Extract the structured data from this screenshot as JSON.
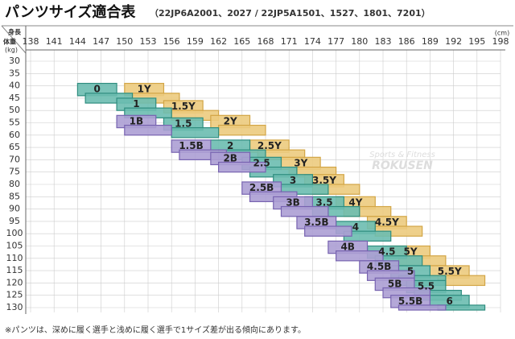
{
  "header": {
    "title": "パンツサイズ適合表",
    "subtitle": "（22JP6A2001、2027 / 22JP5A1501、1527、1801、7201）"
  },
  "axes": {
    "height_label": "身長",
    "height_unit": "(cm)",
    "weight_label": "体重",
    "weight_unit": "(kg)",
    "heights": [
      138,
      141,
      144,
      147,
      150,
      153,
      156,
      159,
      162,
      165,
      168,
      171,
      174,
      177,
      180,
      183,
      186,
      189,
      192,
      195,
      198
    ],
    "weights": [
      30,
      35,
      40,
      45,
      50,
      55,
      60,
      65,
      70,
      75,
      80,
      85,
      90,
      95,
      100,
      105,
      110,
      115,
      120,
      125,
      130
    ]
  },
  "groups": [
    {
      "color": "#eccb7e",
      "stroke": "#d2a546",
      "regions": [
        {
          "label": "1Y",
          "boxes": [
            [
              150,
              155,
              39,
              44
            ],
            [
              151,
              157,
              43,
              47
            ]
          ]
        },
        {
          "label": "1.5Y",
          "boxes": [
            [
              155,
              160,
              46,
              51
            ],
            [
              156,
              162,
              50,
              54
            ]
          ]
        },
        {
          "label": "2Y",
          "boxes": [
            [
              161,
              166,
              52,
              57
            ],
            [
              162,
              168,
              56,
              60
            ]
          ]
        },
        {
          "label": "2.5Y",
          "boxes": [
            [
              166,
              171,
              62,
              67
            ],
            [
              167,
              173,
              66,
              70
            ]
          ]
        },
        {
          "label": "3Y",
          "boxes": [
            [
              170,
              175,
              69,
              74
            ],
            [
              171,
              177,
              73,
              77
            ]
          ]
        },
        {
          "label": "3.5Y",
          "boxes": [
            [
              173,
              178,
              76,
              81
            ],
            [
              174,
              180,
              80,
              84
            ]
          ]
        },
        {
          "label": "4Y",
          "boxes": [
            [
              177,
              182,
              85,
              90
            ],
            [
              178,
              184,
              89,
              93
            ]
          ]
        },
        {
          "label": "4.5Y",
          "boxes": [
            [
              181,
              186,
              93,
              98
            ],
            [
              182,
              188,
              97,
              101
            ]
          ]
        },
        {
          "label": "5Y",
          "boxes": [
            [
              184,
              189,
              105,
              110
            ],
            [
              185,
              191,
              109,
              113
            ]
          ]
        },
        {
          "label": "5.5Y",
          "boxes": [
            [
              189,
              194,
              113,
              118
            ],
            [
              190,
              196,
              117,
              121
            ]
          ]
        }
      ]
    },
    {
      "color": "#6cbdb0",
      "stroke": "#2f8d7f",
      "regions": [
        {
          "label": "0",
          "boxes": [
            [
              144,
              149,
              39,
              44
            ],
            [
              145,
              151,
              43,
              47
            ]
          ]
        },
        {
          "label": "1",
          "boxes": [
            [
              149,
              154,
              45,
              50
            ],
            [
              150,
              156,
              49,
              53
            ]
          ]
        },
        {
          "label": "1.5",
          "boxes": [
            [
              155,
              160,
              53,
              58
            ],
            [
              156,
              162,
              57,
              61
            ]
          ]
        },
        {
          "label": "2",
          "boxes": [
            [
              161,
              166,
              62,
              67
            ],
            [
              162,
              168,
              66,
              70
            ]
          ]
        },
        {
          "label": "2.5",
          "boxes": [
            [
              165,
              170,
              69,
              74
            ],
            [
              166,
              172,
              73,
              77
            ]
          ]
        },
        {
          "label": "3",
          "boxes": [
            [
              169,
              174,
              76,
              81
            ],
            [
              170,
              176,
              80,
              84
            ]
          ]
        },
        {
          "label": "3.5",
          "boxes": [
            [
              173,
              178,
              85,
              90
            ],
            [
              174,
              180,
              89,
              93
            ]
          ]
        },
        {
          "label": "4",
          "boxes": [
            [
              177,
              182,
              95,
              100
            ],
            [
              178,
              184,
              99,
              103
            ]
          ]
        },
        {
          "label": "4.5",
          "boxes": [
            [
              181,
              186,
              105,
              110
            ],
            [
              182,
              188,
              109,
              113
            ]
          ]
        },
        {
          "label": "5",
          "boxes": [
            [
              184,
              189,
              113,
              118
            ],
            [
              185,
              191,
              117,
              121
            ]
          ]
        },
        {
          "label": "5.5",
          "boxes": [
            [
              186,
              191,
              119,
              124
            ],
            [
              187,
              193,
              123,
              127
            ]
          ]
        },
        {
          "label": "6",
          "boxes": [
            [
              189,
              194,
              125,
              130
            ],
            [
              190,
              196,
              129,
              131
            ]
          ]
        }
      ]
    },
    {
      "color": "#ac9fd4",
      "stroke": "#7763b0",
      "regions": [
        {
          "label": "1B",
          "boxes": [
            [
              149,
              154,
              52,
              57
            ],
            [
              150,
              156,
              56,
              60
            ]
          ]
        },
        {
          "label": "1.5B",
          "boxes": [
            [
              156,
              161,
              62,
              67
            ],
            [
              157,
              163,
              66,
              70
            ]
          ]
        },
        {
          "label": "2B",
          "boxes": [
            [
              161,
              166,
              67,
              72
            ],
            [
              162,
              168,
              71,
              75
            ]
          ]
        },
        {
          "label": "2.5B",
          "boxes": [
            [
              165,
              170,
              79,
              84
            ],
            [
              166,
              172,
              83,
              87
            ]
          ]
        },
        {
          "label": "3B",
          "boxes": [
            [
              169,
              174,
              85,
              90
            ],
            [
              170,
              176,
              89,
              93
            ]
          ]
        },
        {
          "label": "3.5B",
          "boxes": [
            [
              172,
              177,
              93,
              98
            ],
            [
              173,
              179,
              97,
              101
            ]
          ]
        },
        {
          "label": "4B",
          "boxes": [
            [
              176,
              181,
              103,
              108
            ],
            [
              177,
              183,
              107,
              111
            ]
          ]
        },
        {
          "label": "4.5B",
          "boxes": [
            [
              180,
              185,
              111,
              116
            ],
            [
              181,
              187,
              115,
              119
            ]
          ]
        },
        {
          "label": "5B",
          "boxes": [
            [
              182,
              187,
              118,
              123
            ],
            [
              183,
              189,
              122,
              126
            ]
          ]
        },
        {
          "label": "5.5B",
          "boxes": [
            [
              184,
              189,
              125,
              130
            ],
            [
              185,
              191,
              129,
              131
            ]
          ]
        }
      ]
    }
  ],
  "watermark": {
    "line1": "Sports & Fitness",
    "line2": "ROKUSEN"
  },
  "footer": {
    "note": "※パンツは、深めに履く選手と浅めに履く選手で1サイズ差が出る傾向にあります。"
  }
}
